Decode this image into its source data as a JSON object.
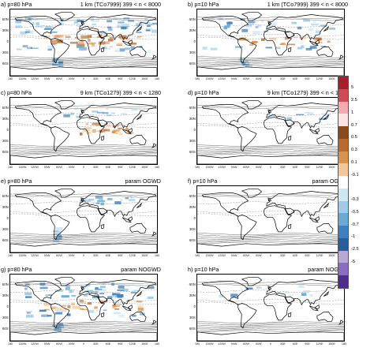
{
  "panels": [
    {
      "id": "a",
      "left": "a) p=80 hPa",
      "right": "1 km (TCo7999)   399 < n < 8000",
      "intensity": 1.0,
      "pattern": "strong"
    },
    {
      "id": "b",
      "left": "b) p=10 hPa",
      "right": "1 km (TCo7999)   399 < n < 8000",
      "intensity": 0.55,
      "pattern": "medium"
    },
    {
      "id": "c",
      "left": "c) p=80 hPa",
      "right": "9 km (TCo1279)   399 < n < 1280",
      "intensity": 0.45,
      "pattern": "africa"
    },
    {
      "id": "d",
      "left": "d) p=10 hPa",
      "right": "9 km (TCo1279)   399 < n < 1280",
      "intensity": 0.15,
      "pattern": "weak"
    },
    {
      "id": "e",
      "left": "e) p=80 hPa",
      "right": "param OGWD",
      "intensity": 0.3,
      "pattern": "andes"
    },
    {
      "id": "f",
      "left": "f) p=10 hPa",
      "right": "param OGWD",
      "intensity": 0.05,
      "pattern": "none"
    },
    {
      "id": "g",
      "left": "g) p=80 hPa",
      "right": "param NOGWD",
      "intensity": 0.75,
      "pattern": "nogwd"
    },
    {
      "id": "h",
      "left": "h) p=10 hPa",
      "right": "param NOGWD",
      "intensity": 0.2,
      "pattern": "weak"
    }
  ],
  "lat_labels": [
    "60N",
    "30N",
    "0",
    "30S",
    "60S"
  ],
  "lon_labels": [
    "180",
    "150W",
    "120W",
    "90W",
    "60W",
    "30W",
    "0",
    "30E",
    "60E",
    "90E",
    "120E",
    "150E",
    "180"
  ],
  "colorbar": {
    "ticks": [
      "5",
      "2.5",
      "1",
      "0.7",
      "0.5",
      "0.3",
      "0.1",
      "-0.1",
      "-0.3",
      "-0.5",
      "-0.7",
      "-1",
      "-2.5",
      "-5"
    ],
    "colors": [
      "#a5202a",
      "#cf4b55",
      "#f2a9b0",
      "#fbe3e6",
      "#8b4a1c",
      "#b86a2f",
      "#d8914f",
      "#f4c79b",
      "#ffffff",
      "#cfe6f3",
      "#9fcbe8",
      "#6aa9d6",
      "#3d7fbf",
      "#2a5e9a",
      "#b9a7d6",
      "#8a6cc0",
      "#4e2e8c"
    ]
  }
}
